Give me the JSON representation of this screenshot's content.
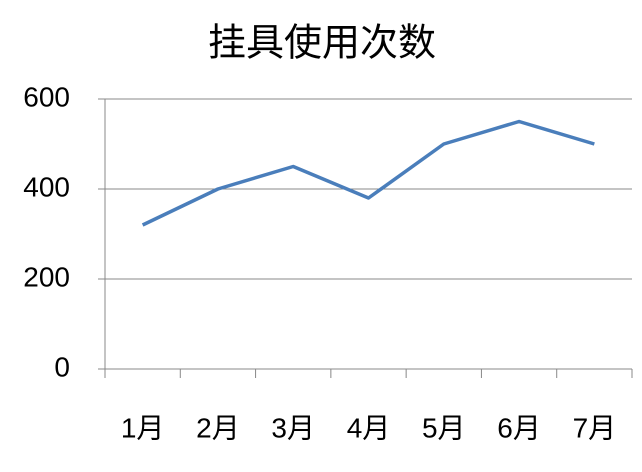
{
  "chart_data": {
    "type": "line",
    "title": "挂具使用次数",
    "categories": [
      "1月",
      "2月",
      "3月",
      "4月",
      "5月",
      "6月",
      "7月"
    ],
    "values": [
      320,
      400,
      450,
      380,
      500,
      550,
      500
    ],
    "color": "#4a7ebb",
    "ylim": [
      0,
      600
    ],
    "yticks": [
      0,
      200,
      400,
      600
    ],
    "grid": true
  }
}
